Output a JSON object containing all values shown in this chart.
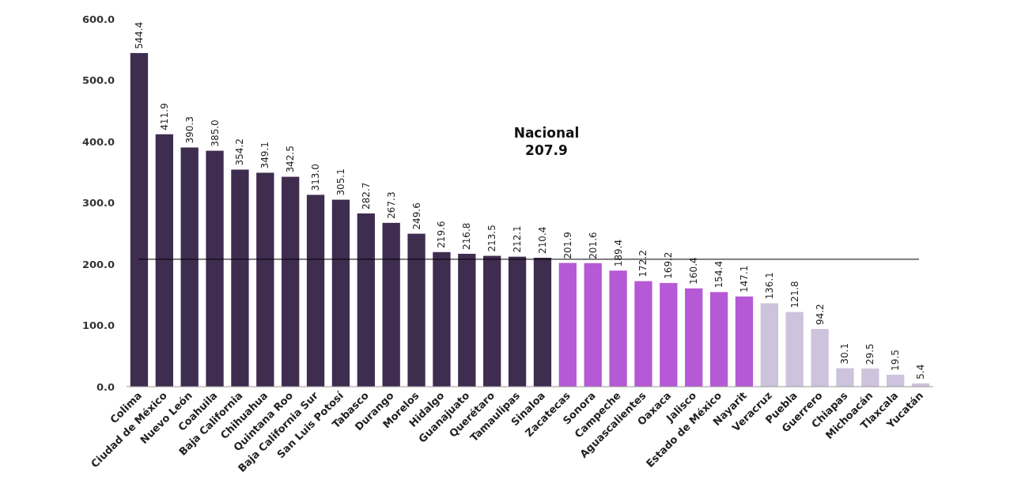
{
  "chart_data": {
    "type": "bar",
    "categories": [
      "Colima",
      "Ciudad de México",
      "Nuevo León",
      "Coahuila",
      "Baja California",
      "Chihuahua",
      "Quintana Roo",
      "Baja California Sur",
      "San Luis Potosí",
      "Tabasco",
      "Durango",
      "Morelos",
      "Hidalgo",
      "Guanajuato",
      "Querétaro",
      "Tamaulipas",
      "Sinaloa",
      "Zacatecas",
      "Sonora",
      "Campeche",
      "Aguascalientes",
      "Oaxaca",
      "Jalisco",
      "Estado de México",
      "Nayarit",
      "Veracruz",
      "Puebla",
      "Guerrero",
      "Chiapas",
      "Michoacán",
      "Tlaxcala",
      "Yucatán"
    ],
    "values": [
      544.4,
      411.9,
      390.3,
      385.0,
      354.2,
      349.1,
      342.5,
      313.0,
      305.1,
      282.7,
      267.3,
      249.6,
      219.6,
      216.8,
      213.5,
      212.1,
      210.4,
      201.9,
      201.6,
      189.4,
      172.2,
      169.2,
      160.4,
      154.4,
      147.1,
      136.1,
      121.8,
      94.2,
      30.1,
      29.5,
      19.5,
      5.4
    ],
    "value_labels": [
      "544.4",
      "411.9",
      "390.3",
      "385.0",
      "354.2",
      "349.1",
      "342.5",
      "313.0",
      "305.1",
      "282.7",
      "267.3",
      "249.6",
      "219.6",
      "216.8",
      "213.5",
      "212.1",
      "210.4",
      "201.9",
      "201.6",
      "189.4",
      "172.2",
      "169.2",
      "160.4",
      "154.4",
      "147.1",
      "136.1",
      "121.8",
      "94.2",
      "30.1",
      "29.5",
      "19.5",
      "5.4"
    ],
    "colors": [
      "#3f2d50",
      "#3f2d50",
      "#3f2d50",
      "#3f2d50",
      "#3f2d50",
      "#3f2d50",
      "#3f2d50",
      "#3f2d50",
      "#3f2d50",
      "#3f2d50",
      "#3f2d50",
      "#3f2d50",
      "#3f2d50",
      "#3f2d50",
      "#3f2d50",
      "#3f2d50",
      "#3f2d50",
      "#b659d6",
      "#b659d6",
      "#b659d6",
      "#b659d6",
      "#b659d6",
      "#b659d6",
      "#b659d6",
      "#b659d6",
      "#cdc3dc",
      "#cdc3dc",
      "#cdc3dc",
      "#cdc3dc",
      "#cdc3dc",
      "#cdc3dc",
      "#cdc3dc"
    ],
    "ylim": [
      0,
      600
    ],
    "yticks": [
      {
        "value": 0,
        "label": "0.0"
      },
      {
        "value": 100,
        "label": "100.0"
      },
      {
        "value": 200,
        "label": "200.0"
      },
      {
        "value": 300,
        "label": "300.0"
      },
      {
        "value": 400,
        "label": "400.0"
      },
      {
        "value": 500,
        "label": "500.0"
      },
      {
        "value": 600,
        "label": "600.0"
      }
    ],
    "ref_lines": [
      {
        "axis": "y",
        "value": 207.9,
        "label": "Nacional\n207.9",
        "color": "#000000"
      }
    ],
    "grid": false
  }
}
